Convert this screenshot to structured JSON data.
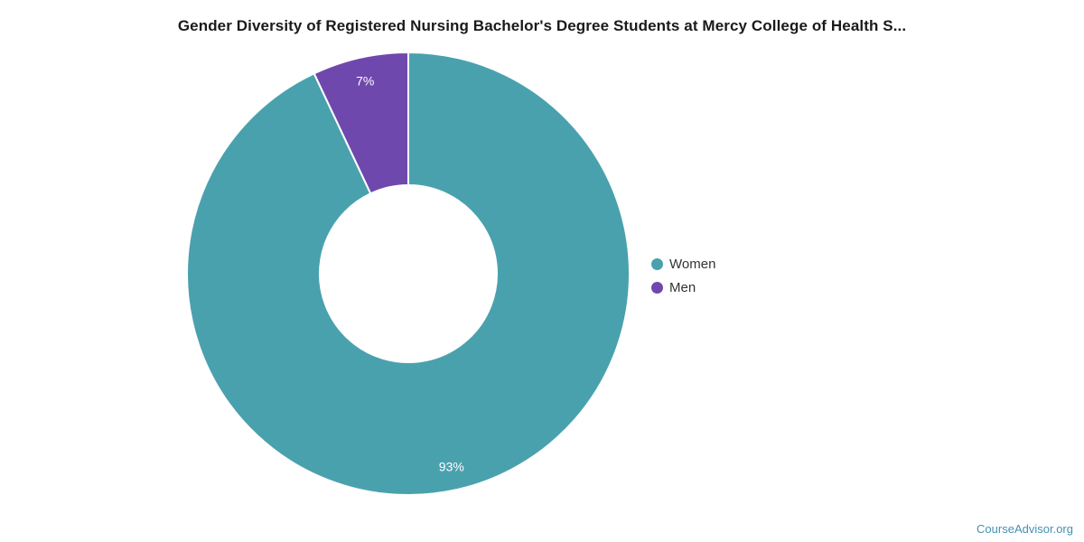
{
  "chart_data": {
    "type": "pie",
    "subtype": "donut",
    "title": "Gender Diversity of Registered Nursing Bachelor's Degree Students at Mercy College of Health S...",
    "legend_position": "right",
    "start_angle_deg": 0,
    "inner_radius_ratio": 0.4,
    "data_label_color": "#ffffff",
    "background_color": "#ffffff",
    "slices": [
      {
        "label": "Women",
        "value": 93,
        "data_label": "93%",
        "color": "#4AA1AE"
      },
      {
        "label": "Men",
        "value": 7,
        "data_label": "7%",
        "color": "#6F48AD"
      }
    ]
  },
  "watermark": {
    "text": "CourseAdvisor.org",
    "color": "#4691B4"
  }
}
